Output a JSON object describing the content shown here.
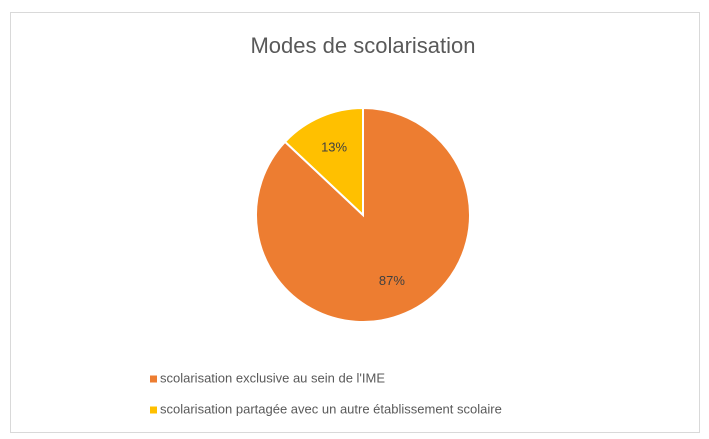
{
  "chart_data": {
    "type": "pie",
    "title": "Modes de scolarisation",
    "categories": [
      "scolarisation exclusive au sein de l'IME",
      "scolarisation partagée avec un autre établissement scolaire"
    ],
    "values": [
      87,
      13
    ],
    "value_labels": [
      "87%",
      "13%"
    ],
    "colors": [
      "#ED7D31",
      "#FFC000"
    ]
  }
}
